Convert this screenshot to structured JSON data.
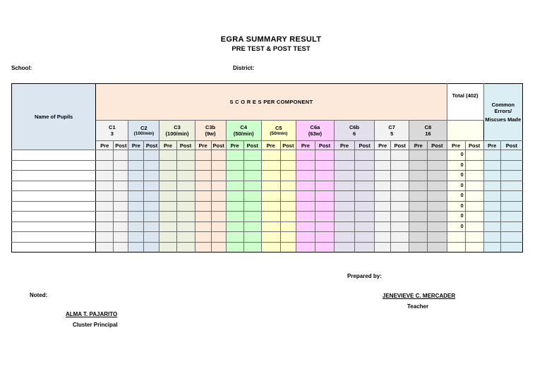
{
  "title": "EGRA SUMMARY RESULT",
  "subtitle": "PRE TEST & POST TEST",
  "school_label": "School:",
  "district_label": "District:",
  "table": {
    "name_header": "Name of Pupils",
    "scores_header": "S C O R E S  PER COMPONENT",
    "total_header": "Total (402)",
    "common_header_1": "Common Errors/",
    "common_header_2": "Miscues Made",
    "components": [
      {
        "code": "C1",
        "sub": "3"
      },
      {
        "code": "C2",
        "sub": "(100/min)"
      },
      {
        "code": "C3",
        "sub": "(100/min)"
      },
      {
        "code": "C3b",
        "sub": "(9w)"
      },
      {
        "code": "C4",
        "sub": "(50/min)"
      },
      {
        "code": "C5",
        "sub": "(50/min)"
      },
      {
        "code": "C6a",
        "sub": "(63w)"
      },
      {
        "code": "C6b",
        "sub": "6"
      },
      {
        "code": "C7",
        "sub": "5"
      },
      {
        "code": "C8",
        "sub": "16"
      }
    ],
    "pre_label": "Pre",
    "post_label": "Post",
    "total_values": [
      "0",
      "0",
      "0",
      "0",
      "0",
      "0",
      "0",
      "0",
      "",
      ""
    ]
  },
  "prepared_by_label": "Prepared by:",
  "preparer_name": "JENEVIEVE C. MERCADER",
  "preparer_role": "Teacher",
  "noted_label": "Noted:",
  "noter_name": "ALMA T. PAJARITO",
  "noter_role": "Cluster Principal"
}
